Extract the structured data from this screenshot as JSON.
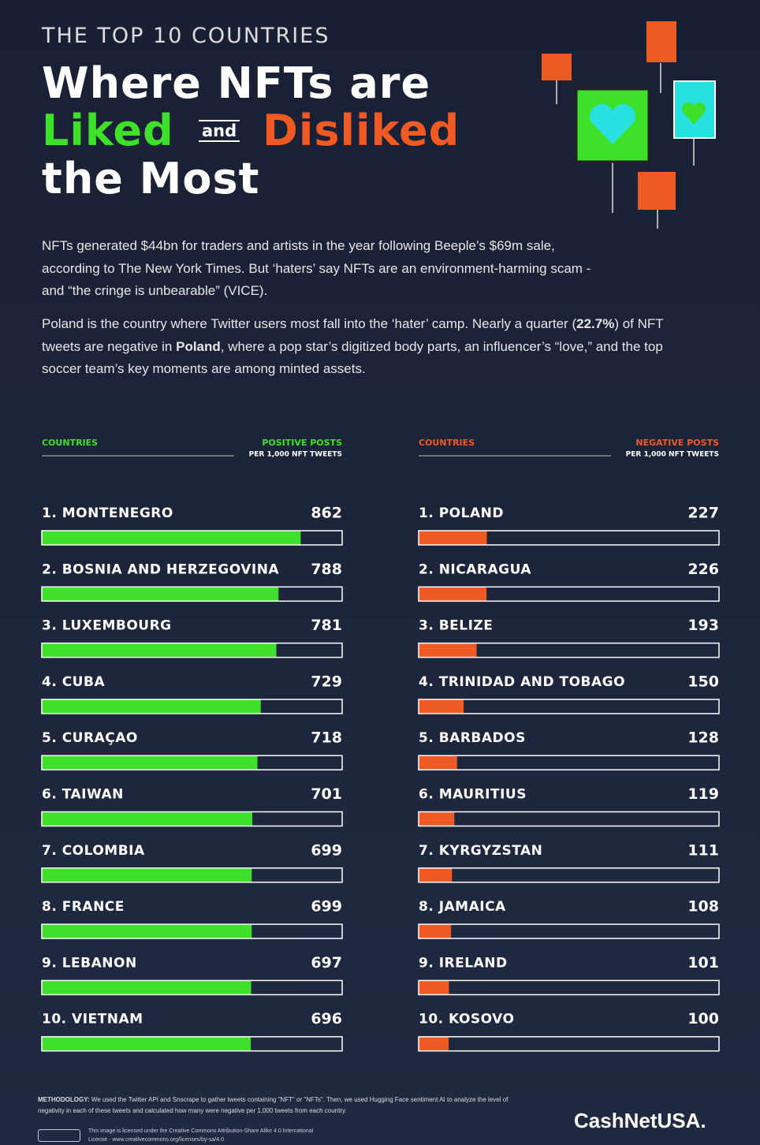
{
  "header": {
    "kicker": "THE TOP 10 COUNTRIES",
    "title_line1": "Where NFTs are",
    "liked": "Liked",
    "and": "and",
    "disliked": "Disliked",
    "title_line3": "the Most"
  },
  "intro": {
    "paragraph1": "NFTs generated $44bn for traders and artists in the year following Beeple’s $69m sale, according to The New York Times. But ‘haters’ say NFTs are an environment-harming scam - and “the cringe is unbearable” (VICE).",
    "paragraph2": [
      "Poland is the country where Twitter users most fall into the ‘hater’ camp. Nearly a quarter (",
      "22.7%",
      ") of NFT tweets are negative in ",
      "Poland",
      ", where a pop star’s digitized body parts, an influencer’s “love,” and the top soccer team’s key moments are among minted assets."
    ]
  },
  "chart_data": [
    {
      "type": "bar",
      "orientation": "horizontal",
      "category_header": "COUNTRIES",
      "value_header": "POSITIVE POSTS",
      "value_subheader": "PER 1,000 NFT TWEETS",
      "categories": [
        "1. MONTENEGRO",
        "2. BOSNIA AND HERZEGOVINA",
        "3. LUXEMBOURG",
        "4. CUBA",
        "5. CURAÇAO",
        "6. TAIWAN",
        "7. COLOMBIA",
        "8. FRANCE",
        "9. LEBANON",
        "10. VIETNAM"
      ],
      "values": [
        862,
        788,
        781,
        729,
        718,
        701,
        699,
        699,
        697,
        696
      ],
      "color": "#3ee02a",
      "xlim": [
        0,
        1000
      ]
    },
    {
      "type": "bar",
      "orientation": "horizontal",
      "category_header": "COUNTRIES",
      "value_header": "NEGATIVE POSTS",
      "value_subheader": "PER 1,000 NFT TWEETS",
      "categories": [
        "1. POLAND",
        "2. NICARAGUA",
        "3. BELIZE",
        "4. TRINIDAD AND TOBAGO",
        "5. BARBADOS",
        "6. MAURITIUS",
        "7. KYRGYZSTAN",
        "8. JAMAICA",
        "9. IRELAND",
        "10. KOSOVO"
      ],
      "values": [
        227,
        226,
        193,
        150,
        128,
        119,
        111,
        108,
        101,
        100
      ],
      "color": "#ef5a24",
      "xlim": [
        0,
        1000
      ]
    }
  ],
  "footer": {
    "methodology_label": "METHODOLOGY:",
    "methodology": "We used the Twitter API and Snscrape to gather tweets containing \"NFT\" or \"NFTs\". Then, we used Hugging Face sentiment AI to analyze the level of negativity in each of these tweets and calculated how many were negative per 1,000 tweets from each country.",
    "license": "This image is licensed under the Creative Commons Attribution-Share Alike 4.0 International License - www.creativecommons.org/licenses/by-sa/4.0",
    "brand": "CashNetUSA."
  }
}
